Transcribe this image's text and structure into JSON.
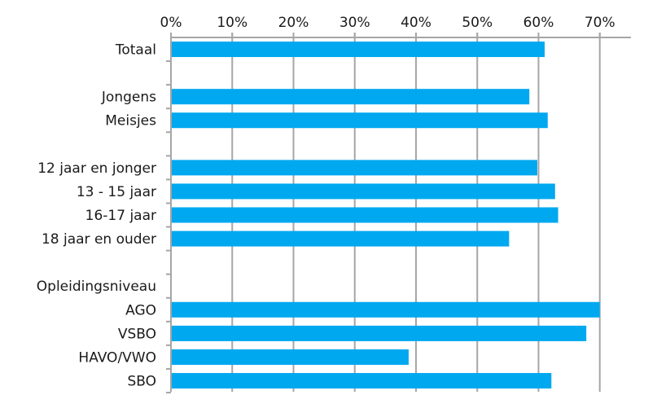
{
  "chart_data": {
    "type": "bar",
    "orientation": "horizontal",
    "title": "",
    "xlabel": "",
    "ylabel": "",
    "xlim": [
      0,
      0.75
    ],
    "x_ticks": [
      0,
      0.1,
      0.2,
      0.3,
      0.4,
      0.5,
      0.6,
      0.7
    ],
    "x_tick_labels": [
      "0%",
      "10%",
      "20%",
      "30%",
      "40%",
      "50%",
      "60%",
      "70%"
    ],
    "x_axis_position": "top",
    "grid": "vertical",
    "legend": "none",
    "bar_color": "#00a8f0",
    "categories": [
      "Totaal",
      "",
      "Jongens",
      "Meisjes",
      "",
      "12 jaar  en jonger",
      "13 - 15 jaar",
      "16-17 jaar",
      "18 jaar  en ouder",
      "",
      "Opleidingsniveau",
      "AGO",
      "VSBO",
      "HAVO/VWO",
      "SBO"
    ],
    "values": [
      0.61,
      null,
      0.585,
      0.615,
      null,
      0.598,
      0.627,
      0.632,
      0.552,
      null,
      null,
      0.7,
      0.678,
      0.388,
      0.621
    ]
  }
}
